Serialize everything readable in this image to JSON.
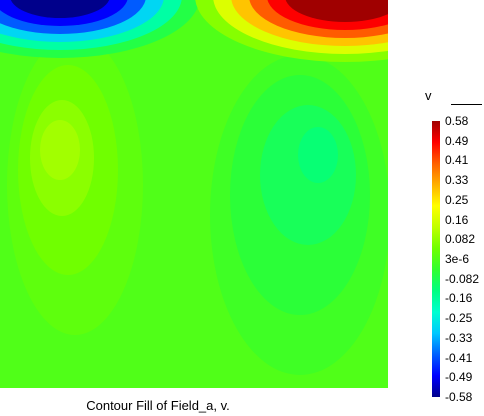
{
  "chart_data": {
    "type": "heatmap",
    "title": "",
    "caption": "Contour Fill of Field_a, v.",
    "colorbar": {
      "variable": "v",
      "min": -0.58,
      "max": 0.58,
      "tick_labels": [
        "0.58",
        "0.49",
        "0.41",
        "0.33",
        "0.25",
        "0.16",
        "0.082",
        "3e-6",
        "-0.082",
        "-0.16",
        "-0.25",
        "-0.33",
        "-0.41",
        "-0.49",
        "-0.58"
      ],
      "colormap": [
        "#00008b",
        "#0000ff",
        "#0060ff",
        "#00c8ff",
        "#00ffd0",
        "#00ff80",
        "#30ff30",
        "#70ff00",
        "#c0ff00",
        "#ffff00",
        "#ffb000",
        "#ff6000",
        "#ff0000",
        "#a00000"
      ]
    },
    "field_features": [
      {
        "name": "top-left minimum",
        "value": -0.58
      },
      {
        "name": "top-right maximum",
        "value": 0.58
      },
      {
        "name": "left inner vortex",
        "value": 0.1
      },
      {
        "name": "right inner vortex",
        "value": -0.12
      },
      {
        "name": "background",
        "value": 0.0
      }
    ]
  }
}
